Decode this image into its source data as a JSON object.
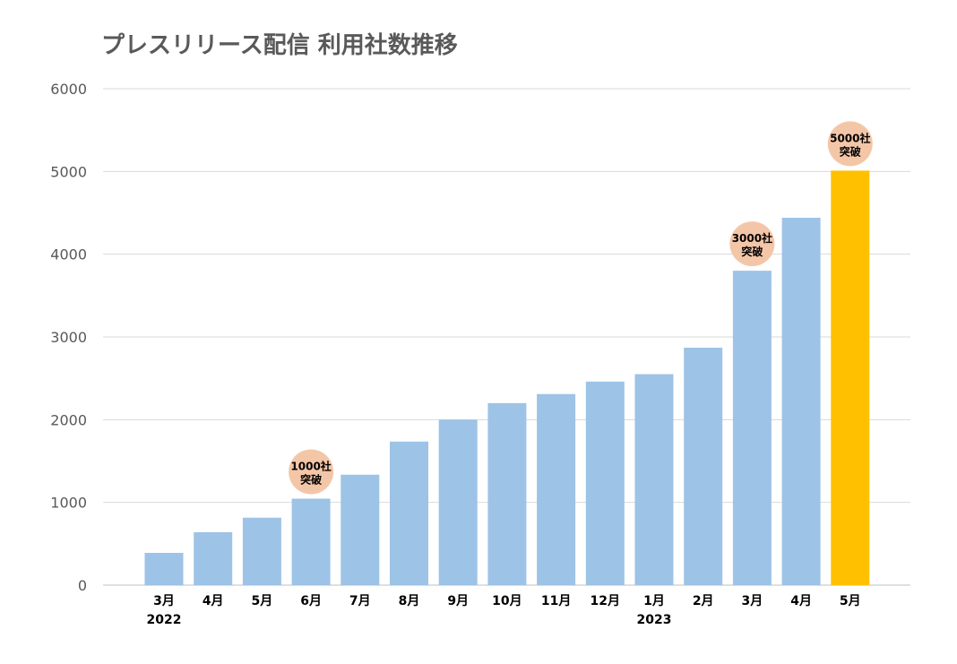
{
  "chart_data": {
    "type": "bar",
    "title": "プレスリリース配信 利用社数推移",
    "categories": [
      "3月",
      "4月",
      "5月",
      "6月",
      "7月",
      "8月",
      "9月",
      "10月",
      "11月",
      "12月",
      "1月",
      "2月",
      "3月",
      "4月",
      "5月"
    ],
    "year_labels": [
      {
        "index": 0,
        "label": "2022"
      },
      {
        "index": 10,
        "label": "2023"
      }
    ],
    "values": [
      390,
      640,
      815,
      1045,
      1335,
      1735,
      2000,
      2200,
      2310,
      2460,
      2550,
      2870,
      3800,
      4440,
      5010
    ],
    "highlight_index": 14,
    "colors": {
      "bar": "#9DC3E6",
      "highlight": "#FFC000",
      "badge": "#F4C6A8",
      "grid": "#D9D9D9"
    },
    "ylim": [
      0,
      6000
    ],
    "yticks": [
      0,
      1000,
      2000,
      3000,
      4000,
      5000,
      6000
    ],
    "xlabel": "",
    "ylabel": "",
    "grid": true,
    "annotations": [
      {
        "index": 3,
        "line1": "1000社",
        "line2": "突破"
      },
      {
        "index": 12,
        "line1": "3000社",
        "line2": "突破"
      },
      {
        "index": 14,
        "line1": "5000社",
        "line2": "突破"
      }
    ]
  }
}
